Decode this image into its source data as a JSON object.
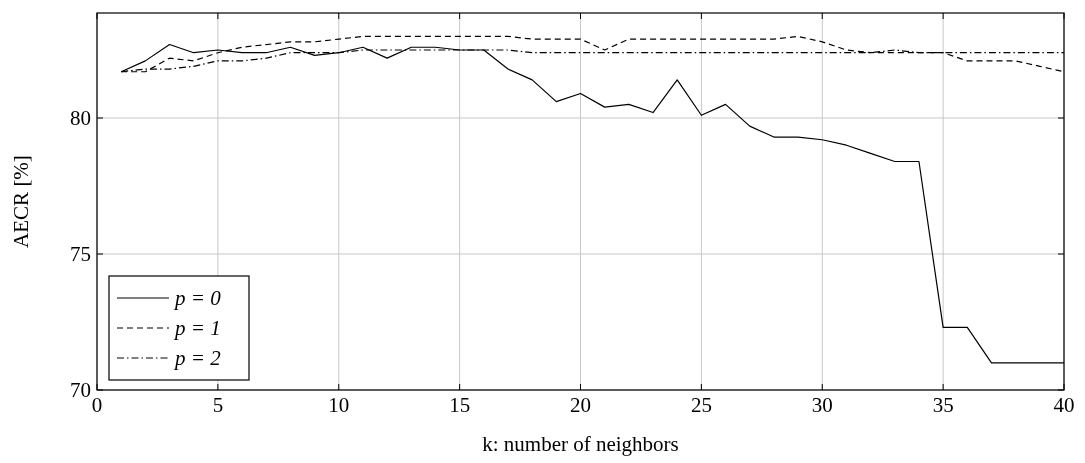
{
  "chart_data": {
    "type": "line",
    "xlabel": "k: number of neighbors",
    "ylabel": "AECR [%]",
    "x": [
      1,
      2,
      3,
      4,
      5,
      6,
      7,
      8,
      9,
      10,
      11,
      12,
      13,
      14,
      15,
      16,
      17,
      18,
      19,
      20,
      21,
      22,
      23,
      24,
      25,
      26,
      27,
      28,
      29,
      30,
      31,
      32,
      33,
      34,
      35,
      36,
      37,
      38,
      39,
      40
    ],
    "series": [
      {
        "name": "p = 0",
        "color": "#000000",
        "line_style": "solid",
        "values": [
          81.7,
          82.1,
          82.7,
          82.4,
          82.5,
          82.4,
          82.4,
          82.6,
          82.3,
          82.4,
          82.6,
          82.2,
          82.6,
          82.6,
          82.5,
          82.5,
          81.8,
          81.4,
          80.6,
          80.9,
          80.4,
          80.5,
          80.2,
          81.4,
          80.1,
          80.5,
          79.7,
          79.3,
          79.3,
          79.2,
          79.0,
          78.7,
          78.4,
          78.4,
          72.3,
          72.3,
          71.0,
          71.0,
          71.0,
          71.0
        ]
      },
      {
        "name": "p = 1",
        "color": "#000000",
        "line_style": "dashed",
        "values": [
          81.7,
          81.7,
          82.2,
          82.1,
          82.4,
          82.6,
          82.7,
          82.8,
          82.8,
          82.9,
          83.0,
          83.0,
          83.0,
          83.0,
          83.0,
          83.0,
          83.0,
          82.9,
          82.9,
          82.9,
          82.5,
          82.9,
          82.9,
          82.9,
          82.9,
          82.9,
          82.9,
          82.9,
          83.0,
          82.8,
          82.5,
          82.4,
          82.4,
          82.4,
          82.4,
          82.1,
          82.1,
          82.1,
          81.9,
          81.7
        ]
      },
      {
        "name": "p = 2",
        "color": "#000000",
        "line_style": "dashdot",
        "values": [
          81.7,
          81.8,
          81.8,
          81.9,
          82.1,
          82.1,
          82.2,
          82.4,
          82.4,
          82.4,
          82.5,
          82.5,
          82.5,
          82.5,
          82.5,
          82.5,
          82.5,
          82.4,
          82.4,
          82.4,
          82.4,
          82.4,
          82.4,
          82.4,
          82.4,
          82.4,
          82.4,
          82.4,
          82.4,
          82.4,
          82.4,
          82.4,
          82.5,
          82.4,
          82.4,
          82.4,
          82.4,
          82.4,
          82.4,
          82.4
        ]
      }
    ],
    "xlim": [
      0,
      40
    ],
    "xticks": [
      0,
      5,
      10,
      15,
      20,
      25,
      30,
      35,
      40
    ],
    "ylim": [
      70,
      83.86
    ],
    "yticks": [
      70,
      75,
      80
    ],
    "grid": true,
    "legend": "bottom left",
    "marker": "none"
  }
}
